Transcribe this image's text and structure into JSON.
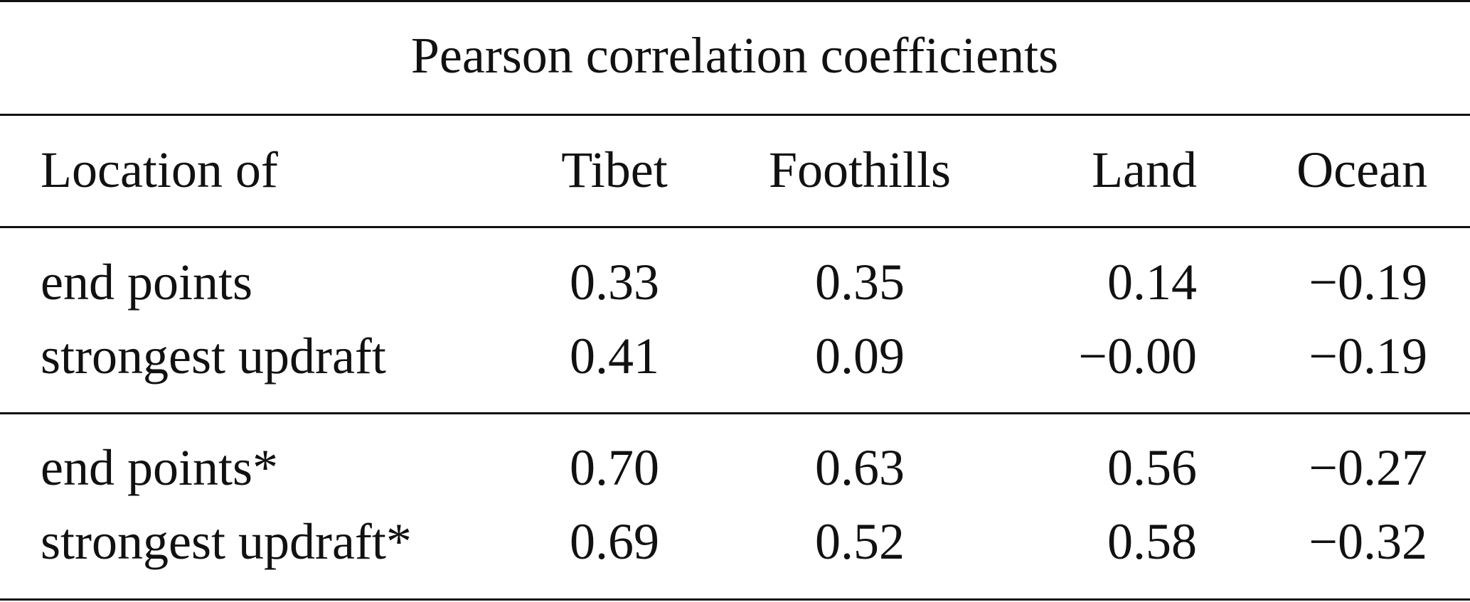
{
  "table": {
    "caption": "Pearson correlation coefficients",
    "header": {
      "row_label": "Location of",
      "columns": [
        "Tibet",
        "Foothills",
        "Land",
        "Ocean"
      ]
    },
    "groups": [
      {
        "rows": [
          {
            "label": "end points",
            "values": [
              "0.33",
              "0.35",
              "0.14",
              "−0.19"
            ]
          },
          {
            "label": "strongest updraft",
            "values": [
              "0.41",
              "0.09",
              "−0.00",
              "−0.19"
            ]
          }
        ]
      },
      {
        "rows": [
          {
            "label": "end points*",
            "values": [
              "0.70",
              "0.63",
              "0.56",
              "−0.27"
            ]
          },
          {
            "label": "strongest updraft*",
            "values": [
              "0.69",
              "0.52",
              "0.58",
              "−0.32"
            ]
          }
        ]
      }
    ]
  }
}
